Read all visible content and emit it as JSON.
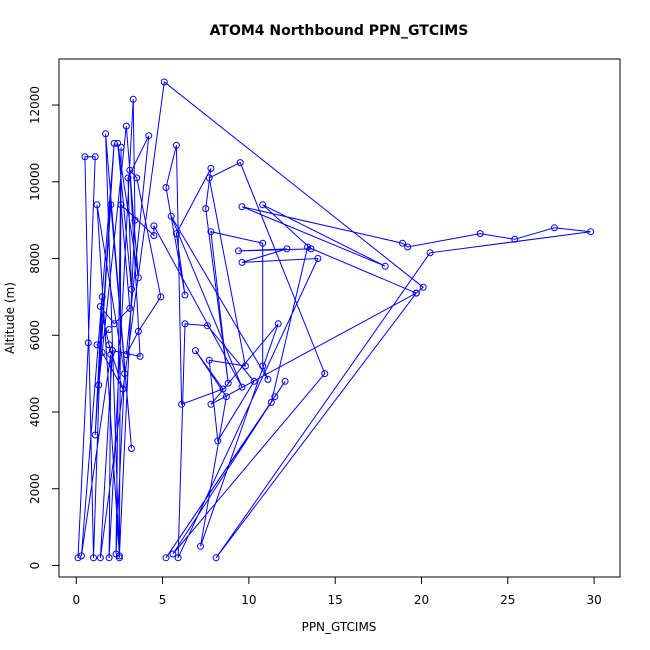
{
  "chart_data": {
    "type": "scatter",
    "title": "ATOM4 Northbound PPN_GTCIMS",
    "xlabel": "PPN_GTCIMS",
    "ylabel": "Altitude (m)",
    "xlim": [
      -1,
      31.5
    ],
    "ylim": [
      -300,
      13200
    ],
    "xticks": [
      0,
      5,
      10,
      15,
      20,
      25,
      30
    ],
    "yticks": [
      0,
      2000,
      4000,
      6000,
      8000,
      10000,
      12000
    ],
    "grid": false,
    "legend": "none",
    "color": "#0000ff",
    "series": [
      {
        "style": "line+points",
        "points": [
          [
            0.1,
            200
          ],
          [
            0.7,
            5800
          ],
          [
            1.1,
            10650
          ],
          [
            0.5,
            10650
          ],
          [
            1.0,
            200
          ],
          [
            1.5,
            7000
          ],
          [
            1.1,
            3400
          ],
          [
            2.2,
            11000
          ],
          [
            0.3,
            250
          ],
          [
            2.0,
            5500
          ],
          [
            1.9,
            200
          ],
          [
            3.3,
            12150
          ],
          [
            3.4,
            9000
          ],
          [
            2.5,
            250
          ],
          [
            1.2,
            9400
          ],
          [
            2.8,
            5000
          ],
          [
            2.3,
            300
          ],
          [
            2.6,
            10900
          ],
          [
            2.5,
            200
          ],
          [
            1.7,
            11250
          ],
          [
            3.2,
            3050
          ],
          [
            2.0,
            9400
          ],
          [
            1.3,
            4700
          ],
          [
            2.9,
            11450
          ],
          [
            3.6,
            7500
          ],
          [
            2.4,
            11000
          ],
          [
            3.2,
            7200
          ],
          [
            3.0,
            10100
          ],
          [
            4.2,
            11200
          ],
          [
            2.9,
            5500
          ],
          [
            3.6,
            6100
          ],
          [
            4.9,
            7000
          ],
          [
            3.5,
            10100
          ],
          [
            3.1,
            10300
          ],
          [
            3.7,
            5450
          ],
          [
            2.1,
            5600
          ],
          [
            1.4,
            200
          ],
          [
            5.1,
            12600
          ],
          [
            20.1,
            7250
          ],
          [
            19.7,
            7100
          ],
          [
            13.4,
            8300
          ],
          [
            11.3,
            4250
          ],
          [
            5.2,
            200
          ],
          [
            12.1,
            4800
          ],
          [
            11.5,
            4400
          ],
          [
            5.6,
            300
          ],
          [
            14.4,
            5000
          ],
          [
            9.5,
            10500
          ],
          [
            7.7,
            10100
          ],
          [
            9.8,
            5200
          ],
          [
            7.7,
            5350
          ],
          [
            8.2,
            3250
          ],
          [
            10.3,
            4800
          ],
          [
            7.6,
            6250
          ],
          [
            6.3,
            6300
          ],
          [
            5.9,
            200
          ],
          [
            14.0,
            8000
          ],
          [
            9.6,
            7900
          ],
          [
            12.2,
            8250
          ],
          [
            9.4,
            8200
          ],
          [
            13.6,
            8250
          ],
          [
            10.8,
            9400
          ],
          [
            17.9,
            7800
          ],
          [
            9.6,
            9350
          ],
          [
            18.9,
            8400
          ],
          [
            19.2,
            8300
          ],
          [
            23.4,
            8650
          ],
          [
            25.4,
            8500
          ],
          [
            27.7,
            8800
          ],
          [
            29.8,
            8700
          ],
          [
            20.5,
            8150
          ],
          [
            8.1,
            200
          ],
          [
            19.7,
            7100
          ],
          [
            7.8,
            4200
          ],
          [
            11.7,
            6300
          ],
          [
            7.2,
            500
          ],
          [
            8.7,
            4400
          ],
          [
            6.9,
            5600
          ],
          [
            8.5,
            4600
          ],
          [
            6.1,
            4200
          ],
          [
            5.8,
            10950
          ],
          [
            5.2,
            9850
          ],
          [
            6.3,
            7050
          ],
          [
            5.8,
            8650
          ],
          [
            7.8,
            10350
          ],
          [
            7.5,
            9300
          ],
          [
            8.8,
            4750
          ],
          [
            7.8,
            8700
          ],
          [
            10.8,
            8400
          ],
          [
            10.8,
            5200
          ],
          [
            11.1,
            4850
          ],
          [
            5.5,
            9100
          ],
          [
            9.6,
            4650
          ],
          [
            4.5,
            8850
          ],
          [
            4.5,
            8600
          ],
          [
            2.6,
            9400
          ],
          [
            3.1,
            6700
          ],
          [
            2.2,
            6300
          ],
          [
            1.4,
            6750
          ],
          [
            1.9,
            5750
          ],
          [
            2.7,
            4600
          ],
          [
            1.5,
            5550
          ],
          [
            1.2,
            5750
          ],
          [
            1.9,
            6150
          ]
        ]
      }
    ]
  }
}
